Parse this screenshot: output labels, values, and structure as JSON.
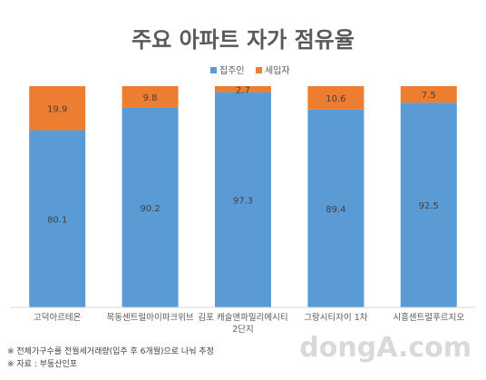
{
  "chart_data": {
    "type": "bar",
    "stacked": true,
    "normalized_to": 100,
    "title": "주요 아파트 자가 점유율",
    "categories": [
      "고덕아르테온",
      "목동센트럴아이파크위브",
      "김포 캐슬앤파밀리에시티 2단지",
      "그랑시티자이 1차",
      "시흥센트럴푸르지오"
    ],
    "category_lines": [
      [
        "고덕아르테온"
      ],
      [
        "목동센트럴아이파크위브"
      ],
      [
        "김포 캐슬앤파밀리에시티",
        "2단지"
      ],
      [
        "그랑시티자이 1차"
      ],
      [
        "시흥센트럴푸르지오"
      ]
    ],
    "series": [
      {
        "name": "집주인",
        "color": "#5b9bd5",
        "values": [
          80.1,
          90.2,
          97.3,
          89.4,
          92.5
        ],
        "labels": [
          "80.1",
          "90.2",
          "97.3",
          "89.4",
          "92.5"
        ]
      },
      {
        "name": "세입자",
        "color": "#ed7d31",
        "values": [
          19.9,
          9.8,
          2.7,
          10.6,
          7.5
        ],
        "labels": [
          "19.9",
          "9.8",
          "2.7",
          "10.6",
          "7.5"
        ]
      }
    ],
    "legend_position": "top-center",
    "grid": false
  },
  "footnotes": [
    "※ 전체가구수를 전월세거래량(입주 후 6개월)으로 나눠 추정",
    "※ 자료 : 부동산인포"
  ],
  "watermark": "dongA.com"
}
